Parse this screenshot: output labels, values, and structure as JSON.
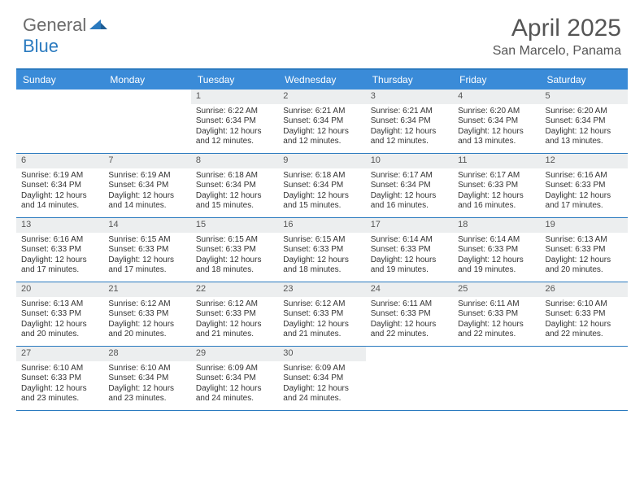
{
  "brand": {
    "part1": "General",
    "part2": "Blue"
  },
  "title": "April 2025",
  "location": "San Marcelo, Panama",
  "colors": {
    "header_bg": "#3a8bd8",
    "border": "#2a7abf",
    "daynum_bg": "#eceeef",
    "text": "#333333",
    "muted": "#555555",
    "white": "#ffffff"
  },
  "typography": {
    "title_fontsize": 30,
    "location_fontsize": 16,
    "dow_fontsize": 12,
    "cell_fontsize": 10
  },
  "days_of_week": [
    "Sunday",
    "Monday",
    "Tuesday",
    "Wednesday",
    "Thursday",
    "Friday",
    "Saturday"
  ],
  "weeks": [
    [
      {
        "empty": true
      },
      {
        "empty": true
      },
      {
        "num": "1",
        "sunrise": "Sunrise: 6:22 AM",
        "sunset": "Sunset: 6:34 PM",
        "daylight": "Daylight: 12 hours and 12 minutes."
      },
      {
        "num": "2",
        "sunrise": "Sunrise: 6:21 AM",
        "sunset": "Sunset: 6:34 PM",
        "daylight": "Daylight: 12 hours and 12 minutes."
      },
      {
        "num": "3",
        "sunrise": "Sunrise: 6:21 AM",
        "sunset": "Sunset: 6:34 PM",
        "daylight": "Daylight: 12 hours and 12 minutes."
      },
      {
        "num": "4",
        "sunrise": "Sunrise: 6:20 AM",
        "sunset": "Sunset: 6:34 PM",
        "daylight": "Daylight: 12 hours and 13 minutes."
      },
      {
        "num": "5",
        "sunrise": "Sunrise: 6:20 AM",
        "sunset": "Sunset: 6:34 PM",
        "daylight": "Daylight: 12 hours and 13 minutes."
      }
    ],
    [
      {
        "num": "6",
        "sunrise": "Sunrise: 6:19 AM",
        "sunset": "Sunset: 6:34 PM",
        "daylight": "Daylight: 12 hours and 14 minutes."
      },
      {
        "num": "7",
        "sunrise": "Sunrise: 6:19 AM",
        "sunset": "Sunset: 6:34 PM",
        "daylight": "Daylight: 12 hours and 14 minutes."
      },
      {
        "num": "8",
        "sunrise": "Sunrise: 6:18 AM",
        "sunset": "Sunset: 6:34 PM",
        "daylight": "Daylight: 12 hours and 15 minutes."
      },
      {
        "num": "9",
        "sunrise": "Sunrise: 6:18 AM",
        "sunset": "Sunset: 6:34 PM",
        "daylight": "Daylight: 12 hours and 15 minutes."
      },
      {
        "num": "10",
        "sunrise": "Sunrise: 6:17 AM",
        "sunset": "Sunset: 6:34 PM",
        "daylight": "Daylight: 12 hours and 16 minutes."
      },
      {
        "num": "11",
        "sunrise": "Sunrise: 6:17 AM",
        "sunset": "Sunset: 6:33 PM",
        "daylight": "Daylight: 12 hours and 16 minutes."
      },
      {
        "num": "12",
        "sunrise": "Sunrise: 6:16 AM",
        "sunset": "Sunset: 6:33 PM",
        "daylight": "Daylight: 12 hours and 17 minutes."
      }
    ],
    [
      {
        "num": "13",
        "sunrise": "Sunrise: 6:16 AM",
        "sunset": "Sunset: 6:33 PM",
        "daylight": "Daylight: 12 hours and 17 minutes."
      },
      {
        "num": "14",
        "sunrise": "Sunrise: 6:15 AM",
        "sunset": "Sunset: 6:33 PM",
        "daylight": "Daylight: 12 hours and 17 minutes."
      },
      {
        "num": "15",
        "sunrise": "Sunrise: 6:15 AM",
        "sunset": "Sunset: 6:33 PM",
        "daylight": "Daylight: 12 hours and 18 minutes."
      },
      {
        "num": "16",
        "sunrise": "Sunrise: 6:15 AM",
        "sunset": "Sunset: 6:33 PM",
        "daylight": "Daylight: 12 hours and 18 minutes."
      },
      {
        "num": "17",
        "sunrise": "Sunrise: 6:14 AM",
        "sunset": "Sunset: 6:33 PM",
        "daylight": "Daylight: 12 hours and 19 minutes."
      },
      {
        "num": "18",
        "sunrise": "Sunrise: 6:14 AM",
        "sunset": "Sunset: 6:33 PM",
        "daylight": "Daylight: 12 hours and 19 minutes."
      },
      {
        "num": "19",
        "sunrise": "Sunrise: 6:13 AM",
        "sunset": "Sunset: 6:33 PM",
        "daylight": "Daylight: 12 hours and 20 minutes."
      }
    ],
    [
      {
        "num": "20",
        "sunrise": "Sunrise: 6:13 AM",
        "sunset": "Sunset: 6:33 PM",
        "daylight": "Daylight: 12 hours and 20 minutes."
      },
      {
        "num": "21",
        "sunrise": "Sunrise: 6:12 AM",
        "sunset": "Sunset: 6:33 PM",
        "daylight": "Daylight: 12 hours and 20 minutes."
      },
      {
        "num": "22",
        "sunrise": "Sunrise: 6:12 AM",
        "sunset": "Sunset: 6:33 PM",
        "daylight": "Daylight: 12 hours and 21 minutes."
      },
      {
        "num": "23",
        "sunrise": "Sunrise: 6:12 AM",
        "sunset": "Sunset: 6:33 PM",
        "daylight": "Daylight: 12 hours and 21 minutes."
      },
      {
        "num": "24",
        "sunrise": "Sunrise: 6:11 AM",
        "sunset": "Sunset: 6:33 PM",
        "daylight": "Daylight: 12 hours and 22 minutes."
      },
      {
        "num": "25",
        "sunrise": "Sunrise: 6:11 AM",
        "sunset": "Sunset: 6:33 PM",
        "daylight": "Daylight: 12 hours and 22 minutes."
      },
      {
        "num": "26",
        "sunrise": "Sunrise: 6:10 AM",
        "sunset": "Sunset: 6:33 PM",
        "daylight": "Daylight: 12 hours and 22 minutes."
      }
    ],
    [
      {
        "num": "27",
        "sunrise": "Sunrise: 6:10 AM",
        "sunset": "Sunset: 6:33 PM",
        "daylight": "Daylight: 12 hours and 23 minutes."
      },
      {
        "num": "28",
        "sunrise": "Sunrise: 6:10 AM",
        "sunset": "Sunset: 6:34 PM",
        "daylight": "Daylight: 12 hours and 23 minutes."
      },
      {
        "num": "29",
        "sunrise": "Sunrise: 6:09 AM",
        "sunset": "Sunset: 6:34 PM",
        "daylight": "Daylight: 12 hours and 24 minutes."
      },
      {
        "num": "30",
        "sunrise": "Sunrise: 6:09 AM",
        "sunset": "Sunset: 6:34 PM",
        "daylight": "Daylight: 12 hours and 24 minutes."
      },
      {
        "empty": true
      },
      {
        "empty": true
      },
      {
        "empty": true
      }
    ]
  ]
}
